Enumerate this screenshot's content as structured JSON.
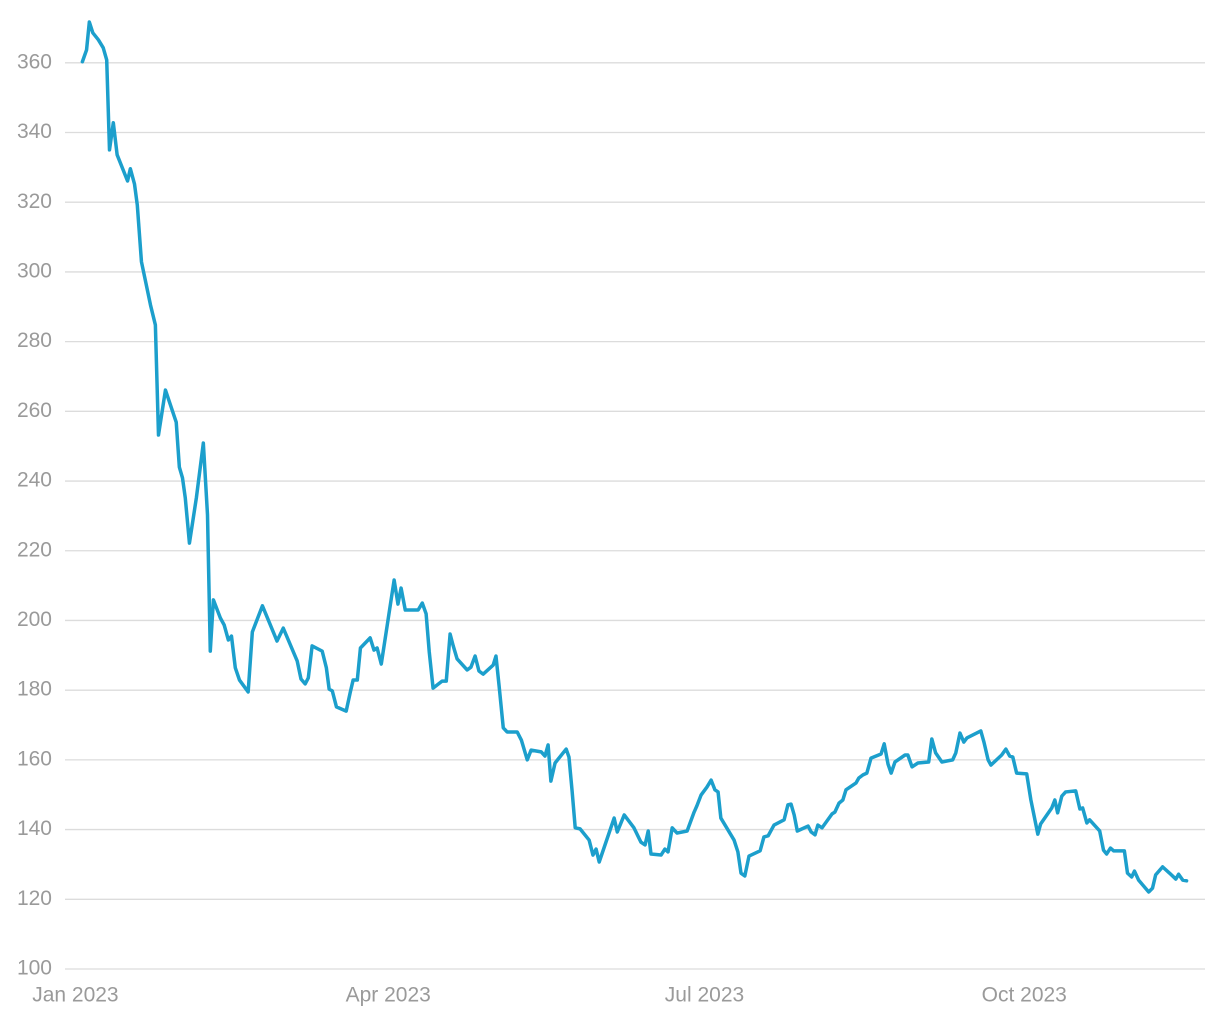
{
  "chart_data": {
    "type": "line",
    "color": "#1c9fcc",
    "grid": true,
    "xlim": [
      -3,
      325
    ],
    "ylim": [
      100,
      374
    ],
    "xticks": [
      {
        "value": 0,
        "label": "Jan 2023"
      },
      {
        "value": 90,
        "label": "Apr 2023"
      },
      {
        "value": 181,
        "label": "Jul 2023"
      },
      {
        "value": 273,
        "label": "Oct 2023"
      }
    ],
    "yticks": [
      100,
      120,
      140,
      160,
      180,
      200,
      220,
      240,
      260,
      280,
      300,
      320,
      340,
      360
    ],
    "x": [
      2,
      3.2,
      4,
      5,
      6.6,
      8,
      9,
      9.8,
      10.9,
      12,
      15,
      15.8,
      17,
      17.8,
      19,
      21.6,
      23,
      23.9,
      25.9,
      29,
      29.9,
      30.8,
      31.6,
      32.8,
      34.8,
      36.8,
      38,
      38.8,
      39.7,
      41.7,
      42.8,
      44,
      44.9,
      46,
      47.2,
      49.7,
      50.9,
      53.8,
      58,
      59.8,
      63.8,
      64.9,
      66.1,
      67,
      68.1,
      71,
      72.2,
      73,
      73.9,
      75.1,
      77.9,
      79.1,
      79.9,
      81.1,
      82,
      84.8,
      85.9,
      86.8,
      88,
      91.7,
      92.8,
      93.7,
      94.9,
      98.6,
      99.8,
      100.9,
      101.8,
      102.9,
      105.5,
      106.7,
      107.8,
      108.7,
      109.8,
      112.7,
      113.8,
      115,
      116.1,
      117.3,
      120.2,
      121,
      121.9,
      123.1,
      124.2,
      127.1,
      128.3,
      130,
      131.1,
      134,
      135.1,
      136,
      136.8,
      138,
      141.2,
      142,
      142.9,
      143.8,
      145.2,
      147.8,
      148.9,
      149.8,
      150.7,
      155,
      155.9,
      157.9,
      160.7,
      162.7,
      163.9,
      164.8,
      165.6,
      168.5,
      169.6,
      170.5,
      171.7,
      173.1,
      176,
      178,
      178.8,
      180,
      181.7,
      182.9,
      184,
      184.9,
      185.7,
      189.5,
      190.6,
      191.5,
      192.6,
      193.8,
      197,
      198.1,
      199.3,
      201,
      203.9,
      205,
      205.9,
      206.8,
      207.7,
      210.8,
      211.7,
      212.8,
      213.6,
      214.8,
      217.7,
      218.5,
      219.7,
      220.8,
      221.7,
      224.6,
      225.4,
      226.6,
      227.7,
      228.9,
      231.8,
      232.7,
      233.8,
      234.7,
      235.8,
      238.7,
      239.5,
      240.7,
      242.4,
      245.5,
      246.4,
      247.5,
      249.3,
      252.4,
      253.3,
      254.5,
      255.6,
      256.5,
      260.5,
      261.4,
      262.6,
      263.4,
      266.5,
      267.7,
      268.8,
      269.7,
      270.8,
      273.7,
      274.9,
      276.9,
      277.7,
      280.9,
      281.8,
      282.6,
      283.8,
      284.9,
      287.8,
      289,
      289.8,
      291,
      291.8,
      294.7,
      295.8,
      296.7,
      297.8,
      298.7,
      301.8,
      302.7,
      303.9,
      304.7,
      305.9,
      308.8,
      309.9,
      310.8,
      312.8,
      314.8,
      316.6,
      317.4,
      318.6,
      319.7
    ],
    "values": [
      360.3,
      363.7,
      371.7,
      368.6,
      366.6,
      364.3,
      360.8,
      335,
      342.8,
      333.6,
      326.1,
      329.6,
      325.2,
      319.2,
      302.9,
      290.5,
      284.8,
      253.2,
      266.1,
      256.9,
      244,
      240.9,
      235.2,
      222.2,
      235.2,
      250.9,
      230.3,
      191.2,
      205.9,
      200.7,
      198.7,
      194.4,
      195.5,
      186.4,
      182.9,
      179.5,
      196.7,
      204.2,
      194.1,
      197.8,
      188.4,
      183.2,
      181.8,
      183.5,
      192.7,
      191.2,
      186.4,
      180.3,
      179.8,
      175.2,
      174,
      179.5,
      182.9,
      182.9,
      192.1,
      195,
      191.5,
      192.1,
      187.5,
      211.6,
      204.7,
      209.3,
      203,
      203,
      205,
      201.9,
      191,
      180.6,
      182.6,
      182.6,
      196.1,
      192.7,
      189,
      185.8,
      186.6,
      189.8,
      185.5,
      184.6,
      187.2,
      189.8,
      181.2,
      169.2,
      168,
      168,
      165.7,
      160,
      162.8,
      162.3,
      161.1,
      164.3,
      153.9,
      159.1,
      163.1,
      160.8,
      151.1,
      140.5,
      140.2,
      137,
      132.7,
      134.4,
      130.7,
      143.3,
      139.3,
      144.2,
      140.5,
      136.4,
      135.6,
      139.6,
      133,
      132.7,
      134.4,
      133.6,
      140.5,
      139,
      139.6,
      145,
      146.8,
      149.9,
      152.2,
      154.2,
      151.4,
      150.8,
      143.3,
      137,
      133.6,
      127.5,
      126.7,
      132.4,
      133.9,
      137.9,
      138.2,
      141.3,
      142.8,
      147.1,
      147.3,
      144.2,
      139.6,
      141,
      139.3,
      138.5,
      141.3,
      140.5,
      144.5,
      145,
      147.6,
      148.5,
      151.4,
      153.4,
      154.8,
      155.7,
      156.2,
      160.5,
      161.7,
      164.6,
      158.8,
      156.2,
      159.4,
      161.4,
      161.4,
      158,
      159.1,
      159.4,
      166,
      162,
      159.4,
      160,
      162,
      167.7,
      165.1,
      166.3,
      168.3,
      165.1,
      160,
      158.5,
      161.4,
      163.1,
      161.1,
      160.8,
      156.2,
      156,
      148.5,
      138.7,
      141.6,
      146.2,
      148.5,
      144.8,
      149.6,
      150.8,
      151.1,
      145.9,
      146.2,
      141.9,
      142.8,
      139.6,
      134.1,
      133,
      134.7,
      133.9,
      133.9,
      127.5,
      126.4,
      128.1,
      125.5,
      122.1,
      123.2,
      127,
      129.3,
      127.5,
      125.8,
      127.2,
      125.5,
      125.3
    ]
  }
}
